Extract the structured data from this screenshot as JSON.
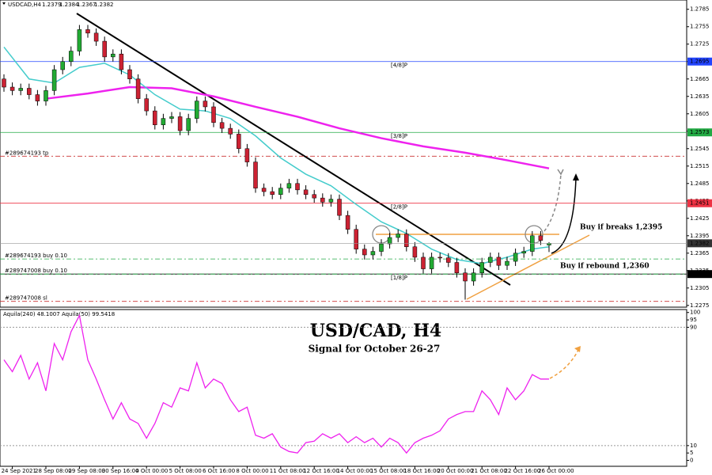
{
  "chart_data": {
    "type": "candlestick",
    "header": "USDCAD,H4",
    "categories": [
      null,
      "24 Sep 2021",
      null,
      null,
      null,
      "28 Sep 08:00",
      null,
      null,
      null,
      "29 Sep 08:00",
      null,
      null,
      null,
      "30 Sep 16:00",
      null,
      null,
      null,
      "4 Oct 00:00",
      null,
      null,
      null,
      "5 Oct 08:00",
      null,
      null,
      null,
      "6 Oct 16:00",
      null,
      null,
      null,
      "8 Oct 00:00",
      null,
      null,
      null,
      "11 Oct 08:00",
      null,
      null,
      null,
      "12 Oct 16:00",
      null,
      null,
      null,
      "14 Oct 00:00",
      null,
      null,
      null,
      "15 Oct 08:00",
      null,
      null,
      null,
      "18 Oct 16:00",
      null,
      null,
      null,
      "20 Oct 00:00",
      null,
      null,
      null,
      "21 Oct 08:00",
      null,
      null,
      null,
      "22 Oct 16:00",
      null,
      null,
      null,
      "26 Oct 00:00"
    ],
    "candles": [
      [
        1.2665,
        1.2673,
        1.2643,
        1.2651
      ],
      [
        1.2651,
        1.2659,
        1.2637,
        1.2645
      ],
      [
        1.2645,
        1.2657,
        1.2637,
        1.2649
      ],
      [
        1.2649,
        1.2657,
        1.263,
        1.2638
      ],
      [
        1.2638,
        1.2646,
        1.2619,
        1.2627
      ],
      [
        1.2627,
        1.2653,
        1.2619,
        1.2645
      ],
      [
        1.2645,
        1.2689,
        1.2637,
        1.2681
      ],
      [
        1.2681,
        1.2703,
        1.2673,
        1.2695
      ],
      [
        1.2695,
        1.2721,
        1.2687,
        1.2713
      ],
      [
        1.2713,
        1.2758,
        1.2705,
        1.275
      ],
      [
        1.275,
        1.2758,
        1.2736,
        1.2744
      ],
      [
        1.2744,
        1.2752,
        1.2722,
        1.273
      ],
      [
        1.273,
        1.2738,
        1.2695,
        1.2703
      ],
      [
        1.2703,
        1.2716,
        1.2695,
        1.2708
      ],
      [
        1.2708,
        1.2716,
        1.2673,
        1.2681
      ],
      [
        1.2681,
        1.2689,
        1.2657,
        1.2665
      ],
      [
        1.2665,
        1.2673,
        1.2623,
        1.2631
      ],
      [
        1.2631,
        1.2639,
        1.2602,
        1.261
      ],
      [
        1.261,
        1.2618,
        1.2578,
        1.2586
      ],
      [
        1.2586,
        1.2605,
        1.2578,
        1.2597
      ],
      [
        1.2597,
        1.2608,
        1.2589,
        1.26
      ],
      [
        1.26,
        1.2608,
        1.2568,
        1.2576
      ],
      [
        1.2576,
        1.2605,
        1.2568,
        1.2597
      ],
      [
        1.2597,
        1.2635,
        1.2589,
        1.2627
      ],
      [
        1.2627,
        1.2635,
        1.2609,
        1.2617
      ],
      [
        1.2617,
        1.2625,
        1.2582,
        1.259
      ],
      [
        1.259,
        1.2598,
        1.2572,
        1.258
      ],
      [
        1.258,
        1.2588,
        1.2562,
        1.257
      ],
      [
        1.257,
        1.2578,
        1.2537,
        1.2545
      ],
      [
        1.2545,
        1.2553,
        1.2514,
        1.2522
      ],
      [
        1.2522,
        1.253,
        1.2469,
        1.2477
      ],
      [
        1.2477,
        1.2485,
        1.2463,
        1.2471
      ],
      [
        1.2471,
        1.2479,
        1.2458,
        1.2466
      ],
      [
        1.2466,
        1.2485,
        1.2458,
        1.2477
      ],
      [
        1.2477,
        1.2493,
        1.2469,
        1.2485
      ],
      [
        1.2485,
        1.2493,
        1.2466,
        1.2474
      ],
      [
        1.2474,
        1.2482,
        1.2458,
        1.2466
      ],
      [
        1.2466,
        1.2474,
        1.2452,
        1.246
      ],
      [
        1.246,
        1.2468,
        1.2445,
        1.2453
      ],
      [
        1.2453,
        1.2466,
        1.2445,
        1.2458
      ],
      [
        1.2458,
        1.2466,
        1.2422,
        1.243
      ],
      [
        1.243,
        1.2438,
        1.2398,
        1.2406
      ],
      [
        1.2406,
        1.2414,
        1.2364,
        1.2372
      ],
      [
        1.2372,
        1.238,
        1.2354,
        1.2362
      ],
      [
        1.2362,
        1.2376,
        1.2354,
        1.2368
      ],
      [
        1.2368,
        1.2389,
        1.236,
        1.2381
      ],
      [
        1.2381,
        1.24,
        1.2373,
        1.2392
      ],
      [
        1.2392,
        1.2406,
        1.2384,
        1.2398
      ],
      [
        1.2398,
        1.2406,
        1.2368,
        1.2376
      ],
      [
        1.2376,
        1.2384,
        1.235,
        1.2358
      ],
      [
        1.2358,
        1.2366,
        1.233,
        1.2338
      ],
      [
        1.2338,
        1.2366,
        1.233,
        1.2358
      ],
      [
        1.2358,
        1.2366,
        1.2349,
        1.2357
      ],
      [
        1.2357,
        1.2365,
        1.2341,
        1.2349
      ],
      [
        1.2349,
        1.2357,
        1.2323,
        1.2331
      ],
      [
        1.2331,
        1.2339,
        1.2285,
        1.2317
      ],
      [
        1.2317,
        1.2339,
        1.2309,
        1.2331
      ],
      [
        1.2331,
        1.2357,
        1.2323,
        1.2349
      ],
      [
        1.2349,
        1.2366,
        1.2341,
        1.2358
      ],
      [
        1.2358,
        1.2366,
        1.2336,
        1.2344
      ],
      [
        1.2344,
        1.2359,
        1.2336,
        1.2351
      ],
      [
        1.2351,
        1.2373,
        1.2343,
        1.2365
      ],
      [
        1.2365,
        1.2376,
        1.2357,
        1.2368
      ],
      [
        1.2368,
        1.2403,
        1.236,
        1.2395
      ],
      [
        1.2395,
        1.2403,
        1.2379,
        1.2387
      ],
      [
        1.2379,
        1.2384,
        1.2367,
        1.2382
      ]
    ],
    "up_color": "#22aa33",
    "down_color": "#cc2233",
    "lines": [
      {
        "color": "#ee22ee",
        "x": [
          5,
          10,
          15,
          20,
          25,
          30,
          35,
          40,
          45,
          50,
          55,
          60,
          65
        ],
        "values": [
          1.2631,
          1.264,
          1.2651,
          1.2649,
          1.2635,
          1.2617,
          1.26,
          1.258,
          1.2563,
          1.2549,
          1.2538,
          1.2525,
          1.2511
        ]
      },
      {
        "color": "#44cccc",
        "x": [
          0,
          3,
          6,
          9,
          12,
          15,
          18,
          21,
          24,
          27,
          30,
          33,
          36,
          39,
          42,
          45,
          48,
          51,
          54,
          57,
          60,
          63,
          65
        ],
        "values": [
          1.272,
          1.2665,
          1.2658,
          1.2685,
          1.2692,
          1.2672,
          1.2638,
          1.2613,
          1.261,
          1.2597,
          1.2567,
          1.2529,
          1.2501,
          1.2481,
          1.2449,
          1.2419,
          1.2399,
          1.2372,
          1.2354,
          1.2347,
          1.2358,
          1.2372,
          1.2376
        ]
      }
    ],
    "ylim": [
      1.2272,
      1.2801
    ],
    "yticks": [
      1.2785,
      1.2755,
      1.2725,
      1.2695,
      1.2665,
      1.2635,
      1.2605,
      1.2575,
      1.2545,
      1.2515,
      1.2485,
      1.2455,
      1.2425,
      1.2395,
      1.2365,
      1.2335,
      1.2305,
      1.2275
    ],
    "levels": [
      {
        "name": "[4/8]P",
        "value": 1.2695,
        "color": "#2244ff"
      },
      {
        "name": "[3/8]P",
        "value": 1.2573,
        "color": "#22aa44"
      },
      {
        "name": "[2/8]P",
        "value": 1.2451,
        "color": "#ee3344"
      },
      {
        "name": "[1/8]P",
        "value": 1.2329,
        "color": "#000000"
      }
    ],
    "orders": [
      {
        "name": "#289674193 tp",
        "value": 1.2532,
        "color": "#cc3333"
      },
      {
        "name": "#289674193 buy 0.10",
        "value": 1.2355,
        "color": "#22aa44"
      },
      {
        "name": "#289747008 buy 0.10",
        "value": 1.2329,
        "color": "#22aa44"
      },
      {
        "name": "#289747008 sl",
        "value": 1.2282,
        "color": "#cc3333"
      }
    ],
    "annotations": [
      "Buy if breaks 1,2395",
      "Buy if rebound 1,2360"
    ],
    "title": "USD/CAD, H4",
    "subtitle": "Signal for October 26-27",
    "oscillator": {
      "title": "Aquila(240) 48.1007  Aquila(50) 99.5418",
      "color": "#ee22ee",
      "values": [
        68,
        60,
        71,
        55,
        66,
        47,
        79,
        68,
        87,
        98,
        68,
        55,
        41,
        28,
        39,
        28,
        25,
        15,
        25,
        39,
        36,
        49,
        47,
        66,
        49,
        55,
        52,
        41,
        33,
        36,
        17,
        15,
        18,
        9,
        6,
        5,
        12,
        13,
        18,
        15,
        18,
        12,
        16,
        12,
        15,
        9,
        15,
        12,
        5,
        12,
        15,
        17,
        20,
        28,
        31,
        33,
        33,
        47,
        41,
        31,
        49,
        41,
        47,
        58,
        55,
        55
      ],
      "ylim": [
        -4,
        102
      ],
      "yticks": [
        100,
        95,
        90,
        10,
        5,
        0
      ],
      "levels": [
        90,
        10
      ]
    }
  }
}
